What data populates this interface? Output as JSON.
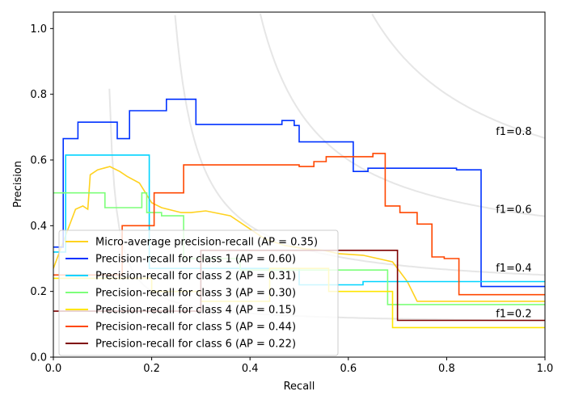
{
  "chart_data": {
    "type": "line",
    "title": "",
    "xlabel": "Recall",
    "ylabel": "Precision",
    "xlim": [
      0.0,
      1.0
    ],
    "ylim": [
      0.0,
      1.05
    ],
    "xticks": [
      "0.0",
      "0.2",
      "0.4",
      "0.6",
      "0.8",
      "1.0"
    ],
    "yticks": [
      "0.0",
      "0.2",
      "0.4",
      "0.6",
      "0.8",
      "1.0"
    ],
    "legend_position": "lower-left",
    "iso_f1": [
      {
        "f1": 0.2,
        "label": "f1=0.2"
      },
      {
        "f1": 0.4,
        "label": "f1=0.4"
      },
      {
        "f1": 0.6,
        "label": "f1=0.6"
      },
      {
        "f1": 0.8,
        "label": "f1=0.8"
      }
    ],
    "series": [
      {
        "name": "Micro-average precision-recall (AP = 0.35)",
        "color": "#ffd21f",
        "x": [
          0.0,
          0.0,
          0.03,
          0.03,
          0.045,
          0.045,
          0.06,
          0.06,
          0.07,
          0.07,
          0.075,
          0.075,
          0.09,
          0.09,
          0.115,
          0.115,
          0.135,
          0.135,
          0.15,
          0.15,
          0.175,
          0.175,
          0.2,
          0.2,
          0.22,
          0.22,
          0.26,
          0.26,
          0.28,
          0.28,
          0.31,
          0.31,
          0.36,
          0.36,
          0.43,
          0.43,
          0.47,
          0.47,
          0.51,
          0.51,
          0.55,
          0.55,
          0.58,
          0.58,
          0.63,
          0.63,
          0.66,
          0.66,
          0.69,
          0.69,
          0.72,
          0.72,
          0.74,
          0.74,
          1.0
        ],
        "y": [
          0.27,
          0.27,
          0.39,
          0.39,
          0.45,
          0.45,
          0.46,
          0.46,
          0.45,
          0.45,
          0.555,
          0.555,
          0.57,
          0.57,
          0.58,
          0.58,
          0.565,
          0.565,
          0.55,
          0.55,
          0.53,
          0.53,
          0.47,
          0.47,
          0.455,
          0.455,
          0.44,
          0.44,
          0.44,
          0.44,
          0.445,
          0.445,
          0.43,
          0.43,
          0.36,
          0.36,
          0.34,
          0.34,
          0.33,
          0.33,
          0.325,
          0.325,
          0.315,
          0.315,
          0.31,
          0.31,
          0.3,
          0.3,
          0.29,
          0.29,
          0.23,
          0.23,
          0.17,
          0.17,
          0.17
        ]
      },
      {
        "name": "Precision-recall for class 1 (AP = 0.60)",
        "color": "#0032ff",
        "x": [
          0.0,
          0.02,
          0.02,
          0.05,
          0.05,
          0.13,
          0.13,
          0.155,
          0.155,
          0.23,
          0.23,
          0.29,
          0.29,
          0.465,
          0.465,
          0.49,
          0.49,
          0.5,
          0.5,
          0.61,
          0.61,
          0.64,
          0.64,
          0.82,
          0.82,
          0.87,
          0.87,
          1.0
        ],
        "y": [
          0.335,
          0.335,
          0.665,
          0.665,
          0.715,
          0.715,
          0.665,
          0.665,
          0.75,
          0.75,
          0.785,
          0.785,
          0.708,
          0.708,
          0.72,
          0.72,
          0.705,
          0.705,
          0.655,
          0.655,
          0.565,
          0.565,
          0.575,
          0.575,
          0.57,
          0.57,
          0.215,
          0.215
        ]
      },
      {
        "name": "Precision-recall for class 2 (AP = 0.31)",
        "color": "#00d4ff",
        "x": [
          0.0,
          0.025,
          0.025,
          0.195,
          0.195,
          0.5,
          0.5,
          0.63,
          0.63,
          1.0
        ],
        "y": [
          0.32,
          0.32,
          0.615,
          0.615,
          0.27,
          0.27,
          0.22,
          0.22,
          0.23,
          0.23
        ]
      },
      {
        "name": "Precision-recall for class 3 (AP = 0.30)",
        "color": "#7dff7a",
        "x": [
          0.0,
          0.105,
          0.105,
          0.18,
          0.18,
          0.19,
          0.19,
          0.22,
          0.22,
          0.265,
          0.265,
          0.38,
          0.38,
          0.6,
          0.6,
          0.68,
          0.68,
          1.0
        ],
        "y": [
          0.5,
          0.5,
          0.455,
          0.455,
          0.5,
          0.5,
          0.44,
          0.44,
          0.43,
          0.43,
          0.3,
          0.3,
          0.265,
          0.265,
          0.265,
          0.265,
          0.16,
          0.16
        ]
      },
      {
        "name": "Precision-recall for class 4 (AP = 0.15)",
        "color": "#ffe600",
        "x": [
          0.0,
          0.2,
          0.2,
          0.3,
          0.3,
          0.44,
          0.44,
          0.56,
          0.56,
          0.69,
          0.69,
          1.0
        ],
        "y": [
          0.24,
          0.24,
          0.2,
          0.2,
          0.17,
          0.17,
          0.27,
          0.27,
          0.2,
          0.2,
          0.09,
          0.09
        ]
      },
      {
        "name": "Precision-recall for class 5 (AP = 0.44)",
        "color": "#ff4700",
        "x": [
          0.0,
          0.14,
          0.14,
          0.205,
          0.205,
          0.265,
          0.265,
          0.5,
          0.5,
          0.53,
          0.53,
          0.555,
          0.555,
          0.58,
          0.58,
          0.65,
          0.65,
          0.675,
          0.675,
          0.705,
          0.705,
          0.74,
          0.74,
          0.77,
          0.77,
          0.795,
          0.795,
          0.825,
          0.825,
          1.0
        ],
        "y": [
          0.25,
          0.25,
          0.4,
          0.4,
          0.5,
          0.5,
          0.585,
          0.585,
          0.58,
          0.58,
          0.595,
          0.595,
          0.61,
          0.61,
          0.61,
          0.61,
          0.62,
          0.62,
          0.46,
          0.46,
          0.44,
          0.44,
          0.405,
          0.405,
          0.305,
          0.305,
          0.3,
          0.3,
          0.19,
          0.19
        ]
      },
      {
        "name": "Precision-recall for class 6 (AP = 0.22)",
        "color": "#7f0000",
        "x": [
          0.0,
          0.3,
          0.3,
          0.7,
          0.7,
          1.0
        ],
        "y": [
          0.14,
          0.14,
          0.325,
          0.325,
          0.112,
          0.112
        ]
      }
    ]
  }
}
